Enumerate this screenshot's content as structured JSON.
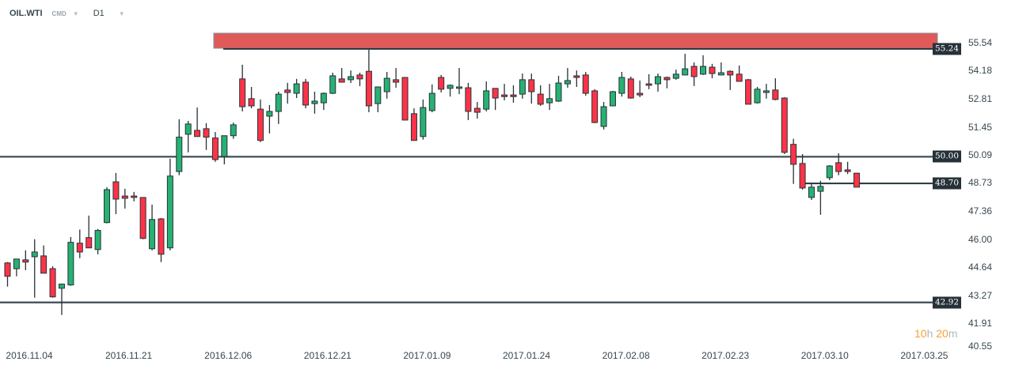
{
  "header": {
    "symbol": "OIL.WTI",
    "category": "CMD",
    "timeframe": "D1"
  },
  "timer": {
    "hours": "10",
    "hours_unit": "h",
    "minutes": "20",
    "minutes_unit": "m"
  },
  "colors": {
    "up": "#27b173",
    "down": "#ff3347",
    "outline": "#263238",
    "zone": "#e05a5a",
    "line": "#263238"
  },
  "chart_data": {
    "type": "candlestick",
    "title": "OIL.WTI D1",
    "ylim": [
      40.55,
      55.54
    ],
    "y_ticks": [
      "55.54",
      "54.18",
      "52.81",
      "51.45",
      "50.09",
      "48.73",
      "47.36",
      "46.00",
      "44.64",
      "43.27",
      "41.91",
      "40.55"
    ],
    "x_ticks": [
      "2016.11.04",
      "2016.11.21",
      "2016.12.06",
      "2016.12.21",
      "2017.01.09",
      "2017.01.24",
      "2017.02.08",
      "2017.02.23",
      "2017.03.10",
      "2017.03.25"
    ],
    "levels": [
      {
        "price": 55.24,
        "label": "55.24",
        "extent": "from-dec-06"
      },
      {
        "price": 50.0,
        "label": "50.00",
        "extent": "full"
      },
      {
        "price": 48.7,
        "label": "48.70",
        "extent": "from-mar-07"
      },
      {
        "price": 42.92,
        "label": "42.92",
        "extent": "full"
      }
    ],
    "resistance_zone": {
      "low": 55.27,
      "high": 56.0
    },
    "ohlc": [
      [
        44.84,
        44.88,
        43.69,
        44.19
      ],
      [
        44.56,
        45.03,
        44.19,
        45.03
      ],
      [
        44.99,
        45.45,
        44.49,
        44.88
      ],
      [
        45.14,
        45.99,
        43.15,
        45.37
      ],
      [
        45.18,
        45.69,
        44.34,
        44.34
      ],
      [
        44.56,
        44.68,
        43.15,
        43.19
      ],
      [
        43.61,
        43.84,
        42.31,
        43.81
      ],
      [
        43.77,
        46.1,
        43.73,
        45.84
      ],
      [
        45.8,
        46.46,
        45.07,
        45.37
      ],
      [
        46.07,
        47.14,
        45.57,
        45.57
      ],
      [
        45.49,
        46.49,
        45.26,
        46.42
      ],
      [
        46.8,
        48.52,
        46.76,
        48.4
      ],
      [
        48.78,
        49.21,
        47.21,
        47.94
      ],
      [
        48.09,
        48.44,
        47.48,
        47.98
      ],
      [
        48.09,
        48.29,
        47.83,
        48.02
      ],
      [
        48.02,
        48.02,
        45.99,
        46.03
      ],
      [
        45.53,
        47.67,
        45.45,
        46.95
      ],
      [
        46.98,
        47.02,
        44.88,
        45.26
      ],
      [
        45.57,
        49.9,
        45.45,
        49.06
      ],
      [
        49.28,
        51.82,
        49.1,
        50.95
      ],
      [
        51.09,
        51.74,
        50.21,
        51.59
      ],
      [
        51.28,
        52.39,
        50.98,
        50.98
      ],
      [
        51.36,
        51.63,
        50.33,
        50.95
      ],
      [
        50.91,
        51.2,
        49.75,
        49.86
      ],
      [
        50.01,
        51.02,
        49.63,
        51.02
      ],
      [
        51.02,
        51.66,
        50.87,
        51.55
      ],
      [
        53.78,
        54.47,
        52.2,
        52.43
      ],
      [
        52.82,
        53.39,
        52.35,
        52.47
      ],
      [
        52.31,
        52.78,
        50.71,
        50.79
      ],
      [
        51.97,
        52.51,
        51.13,
        52.2
      ],
      [
        52.2,
        53.16,
        51.59,
        53.04
      ],
      [
        53.24,
        53.59,
        52.58,
        53.12
      ],
      [
        53.08,
        53.78,
        52.85,
        53.54
      ],
      [
        53.62,
        53.78,
        52.35,
        52.51
      ],
      [
        52.58,
        53.16,
        52.09,
        52.7
      ],
      [
        52.62,
        53.12,
        52.27,
        53.08
      ],
      [
        53.08,
        54.08,
        53.04,
        53.93
      ],
      [
        53.78,
        54.31,
        53.62,
        53.62
      ],
      [
        53.74,
        54.19,
        53.58,
        53.89
      ],
      [
        53.97,
        54.08,
        53.43,
        53.78
      ],
      [
        54.15,
        55.2,
        52.16,
        52.47
      ],
      [
        52.58,
        53.39,
        52.16,
        53.39
      ],
      [
        53.16,
        54.12,
        52.82,
        53.81
      ],
      [
        53.74,
        54.31,
        53.35,
        53.62
      ],
      [
        53.85,
        53.85,
        51.78,
        51.78
      ],
      [
        52.09,
        52.35,
        50.79,
        50.79
      ],
      [
        50.98,
        52.78,
        50.83,
        52.39
      ],
      [
        52.24,
        53.51,
        52.16,
        53.08
      ],
      [
        53.85,
        53.97,
        53.12,
        53.28
      ],
      [
        53.32,
        53.51,
        52.92,
        53.47
      ],
      [
        53.32,
        54.31,
        53.04,
        53.39
      ],
      [
        53.35,
        53.59,
        51.78,
        52.2
      ],
      [
        52.35,
        52.66,
        51.85,
        52.16
      ],
      [
        52.31,
        53.66,
        52.2,
        53.2
      ],
      [
        53.32,
        53.32,
        52.27,
        52.85
      ],
      [
        53.0,
        53.54,
        52.74,
        52.92
      ],
      [
        53.0,
        53.47,
        52.62,
        52.92
      ],
      [
        53.04,
        54.04,
        52.82,
        53.74
      ],
      [
        53.74,
        54.04,
        52.58,
        53.16
      ],
      [
        53.04,
        53.47,
        52.47,
        52.55
      ],
      [
        52.62,
        53.54,
        52.27,
        52.82
      ],
      [
        52.7,
        53.93,
        52.66,
        53.58
      ],
      [
        53.54,
        54.31,
        53.35,
        53.7
      ],
      [
        53.93,
        54.19,
        53.39,
        53.85
      ],
      [
        53.97,
        54.12,
        52.96,
        53.08
      ],
      [
        53.2,
        53.28,
        51.63,
        51.66
      ],
      [
        51.47,
        52.66,
        51.32,
        52.43
      ],
      [
        52.47,
        53.2,
        52.47,
        53.16
      ],
      [
        53.08,
        54.12,
        52.92,
        53.85
      ],
      [
        53.78,
        53.89,
        52.82,
        52.85
      ],
      [
        53.08,
        53.7,
        52.89,
        53.0
      ],
      [
        53.54,
        54.01,
        53.28,
        53.47
      ],
      [
        53.54,
        54.04,
        53.16,
        53.89
      ],
      [
        53.85,
        53.89,
        53.32,
        53.74
      ],
      [
        53.81,
        54.23,
        53.74,
        54.01
      ],
      [
        53.97,
        55.0,
        53.97,
        54.27
      ],
      [
        54.39,
        54.58,
        53.43,
        53.89
      ],
      [
        54.01,
        54.93,
        53.97,
        54.39
      ],
      [
        54.35,
        54.51,
        53.81,
        54.04
      ],
      [
        53.97,
        54.58,
        53.97,
        54.08
      ],
      [
        54.15,
        54.19,
        53.24,
        53.97
      ],
      [
        54.01,
        54.43,
        53.66,
        53.66
      ],
      [
        53.74,
        53.78,
        52.55,
        52.55
      ],
      [
        52.62,
        53.39,
        52.58,
        53.28
      ],
      [
        53.12,
        53.54,
        52.82,
        53.2
      ],
      [
        53.24,
        53.81,
        52.74,
        52.78
      ],
      [
        52.85,
        52.89,
        50.13,
        50.21
      ],
      [
        50.6,
        50.87,
        48.68,
        49.63
      ],
      [
        49.67,
        50.13,
        48.4,
        48.48
      ],
      [
        48.02,
        48.68,
        47.9,
        48.52
      ],
      [
        48.32,
        48.83,
        47.18,
        48.56
      ],
      [
        48.98,
        49.59,
        48.86,
        49.55
      ],
      [
        49.71,
        50.17,
        49.1,
        49.28
      ],
      [
        49.36,
        49.75,
        49.16,
        49.28
      ],
      [
        49.2,
        49.2,
        48.52,
        48.52
      ]
    ]
  }
}
